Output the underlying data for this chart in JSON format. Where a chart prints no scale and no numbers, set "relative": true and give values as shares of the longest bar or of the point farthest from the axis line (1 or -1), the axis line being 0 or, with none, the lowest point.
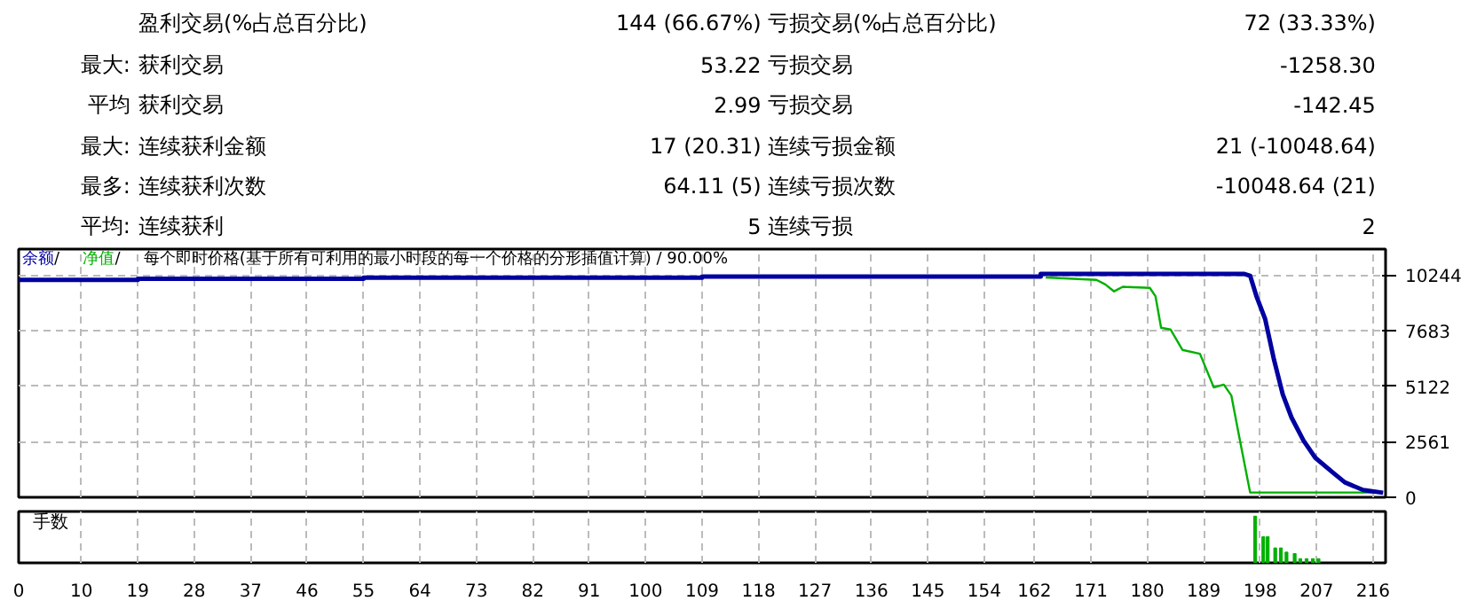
{
  "chart_data": [
    {
      "type": "other",
      "annotations": [
        "盈利交易(%占总百分比)",
        "144 (66.67%)",
        "亏损交易(%占总百分比)",
        "72 (33.33%)",
        "最大:",
        "获利交易",
        "53.22",
        "亏损交易",
        "-1258.30",
        "平均",
        "获利交易",
        "2.99",
        "亏损交易",
        "-142.45",
        "最大:",
        "连续获利金额",
        "17 (20.31)",
        "连续亏损金额",
        "21 (-10048.64)",
        "最多:",
        "连续获利次数",
        "64.11 (5)",
        "连续亏损次数",
        "-10048.64 (21)",
        "平均:",
        "连续获利",
        "5",
        "连续亏损",
        "2"
      ]
    },
    {
      "type": "line",
      "annotations": [
        "/",
        "/"
      ],
      "subtitle": "每个即时价格(基于所有可利用的最小时段的每一个价格的分形插值计算) / 90.00%",
      "legend": "top left",
      "grid": true,
      "tick_labels": "y",
      "xlim": [
        0,
        218
      ],
      "xticks": [
        0,
        10,
        19,
        28,
        37,
        46,
        55,
        64,
        73,
        82,
        91,
        100,
        109,
        118,
        127,
        136,
        145,
        154,
        162,
        171,
        180,
        189,
        198,
        207,
        216
      ],
      "ylim": [
        0,
        11450
      ],
      "yticks": [
        0,
        2561,
        5122,
        7683,
        10244
      ],
      "series": [
        {
          "name": "余额",
          "color": "#0000a0",
          "x": [
            0,
            19,
            19,
            55,
            55,
            109,
            109,
            163,
            163,
            195.5,
            196.4,
            197.4,
            198.8,
            200.2,
            201.6,
            203,
            204.9,
            206.8,
            209.6,
            211.5,
            214.4,
            217.6
          ],
          "values": [
            10030,
            10030,
            10080,
            10080,
            10130,
            10130,
            10180,
            10180,
            10300,
            10300,
            10220,
            9280,
            8220,
            6350,
            4750,
            3680,
            2620,
            1820,
            1140,
            690,
            340,
            210
          ]
        },
        {
          "name": "净值",
          "color": "#00b000",
          "x": [
            163.8,
            171.9,
            173.3,
            174.7,
            176.1,
            180.4,
            181.3,
            182.2,
            183.7,
            185.6,
            188.4,
            190.6,
            192.2,
            193.4,
            194.6,
            196.4,
            217.6
          ],
          "values": [
            10140,
            10030,
            9820,
            9500,
            9710,
            9660,
            9280,
            7820,
            7740,
            6800,
            6620,
            5070,
            5200,
            4700,
            2880,
            220,
            220
          ]
        }
      ]
    },
    {
      "type": "bar",
      "title": "手数",
      "relative": true,
      "grid": "x",
      "tick_labels": "x",
      "color": "#00b000",
      "xlim": [
        0,
        218
      ],
      "xticks": [
        0,
        10,
        19,
        28,
        37,
        46,
        55,
        64,
        73,
        82,
        91,
        100,
        109,
        118,
        127,
        136,
        145,
        154,
        162,
        171,
        180,
        189,
        198,
        207,
        216
      ],
      "x": [
        197.2,
        198.5,
        199.2,
        200.4,
        201.3,
        202.2,
        203.5,
        204.4,
        205.4,
        206.4,
        207.3
      ],
      "values": [
        1,
        0.56,
        0.56,
        0.32,
        0.32,
        0.23,
        0.2,
        0.09,
        0.09,
        0.09,
        0.09
      ]
    }
  ]
}
